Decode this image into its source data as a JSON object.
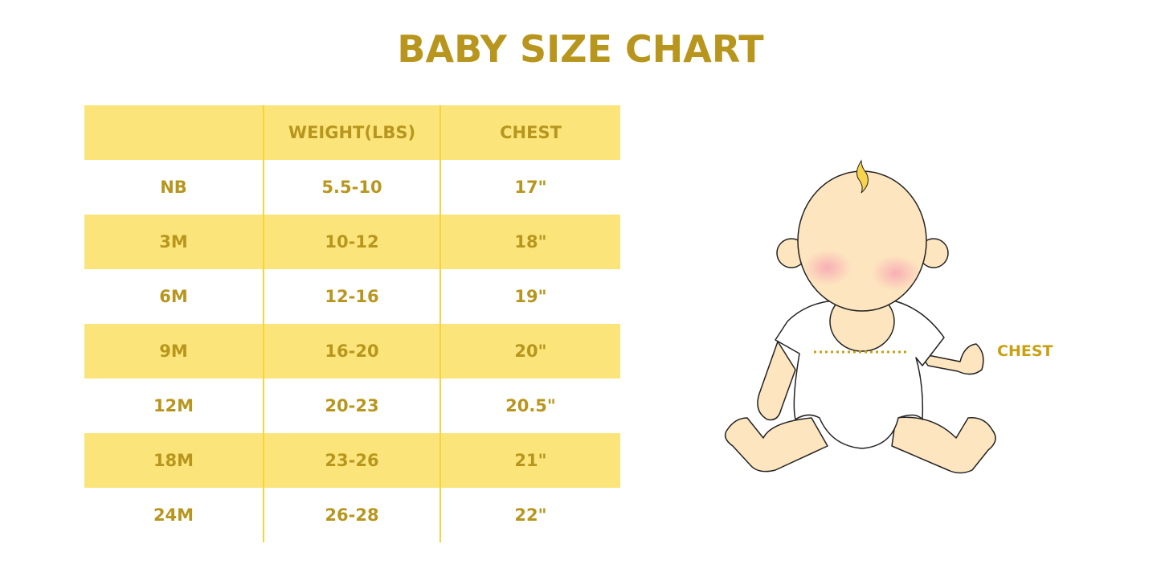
{
  "title": "BABY SIZE CHART",
  "table": {
    "headers": [
      "",
      "WEIGHT(LBS)",
      "CHEST"
    ],
    "rows": [
      [
        "NB",
        "5.5-10",
        "17\""
      ],
      [
        "3M",
        "10-12",
        "18\""
      ],
      [
        "6M",
        "12-16",
        "19\""
      ],
      [
        "9M",
        "16-20",
        "20\""
      ],
      [
        "12M",
        "20-23",
        "20.5\""
      ],
      [
        "18M",
        "23-26",
        "21\""
      ],
      [
        "24M",
        "26-28",
        "22\""
      ]
    ]
  },
  "illustration": {
    "chest_label": "CHEST",
    "icon": "baby-illustration"
  },
  "colors": {
    "text": "#B8961E",
    "stripe": "#FBE57A",
    "skin": "#FDE5BF"
  }
}
